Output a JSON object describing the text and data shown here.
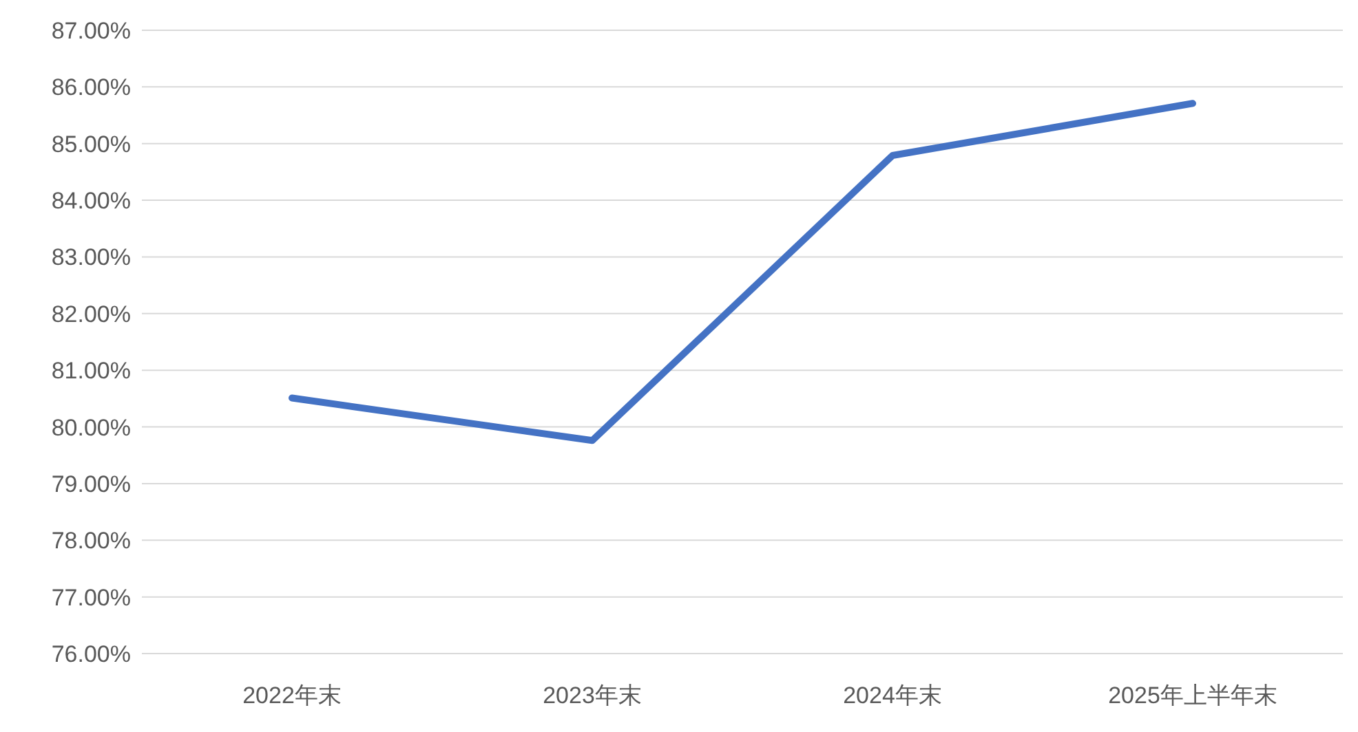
{
  "chart_data": {
    "type": "line",
    "categories": [
      "2022年末",
      "2023年末",
      "2024年末",
      "2025年上半年末"
    ],
    "series": [
      {
        "color": "#4472c4",
        "values": [
          80.51,
          79.76,
          84.79,
          85.71
        ]
      }
    ],
    "ylim": [
      76,
      87
    ],
    "yticks": [
      {
        "value": 76,
        "label": "76.00%"
      },
      {
        "value": 77,
        "label": "77.00%"
      },
      {
        "value": 78,
        "label": "78.00%"
      },
      {
        "value": 79,
        "label": "79.00%"
      },
      {
        "value": 80,
        "label": "80.00%"
      },
      {
        "value": 81,
        "label": "81.00%"
      },
      {
        "value": 82,
        "label": "82.00%"
      },
      {
        "value": 83,
        "label": "83.00%"
      },
      {
        "value": 84,
        "label": "84.00%"
      },
      {
        "value": 85,
        "label": "85.00%"
      },
      {
        "value": 86,
        "label": "86.00%"
      },
      {
        "value": 87,
        "label": "87.00%"
      }
    ],
    "grid": "y"
  }
}
